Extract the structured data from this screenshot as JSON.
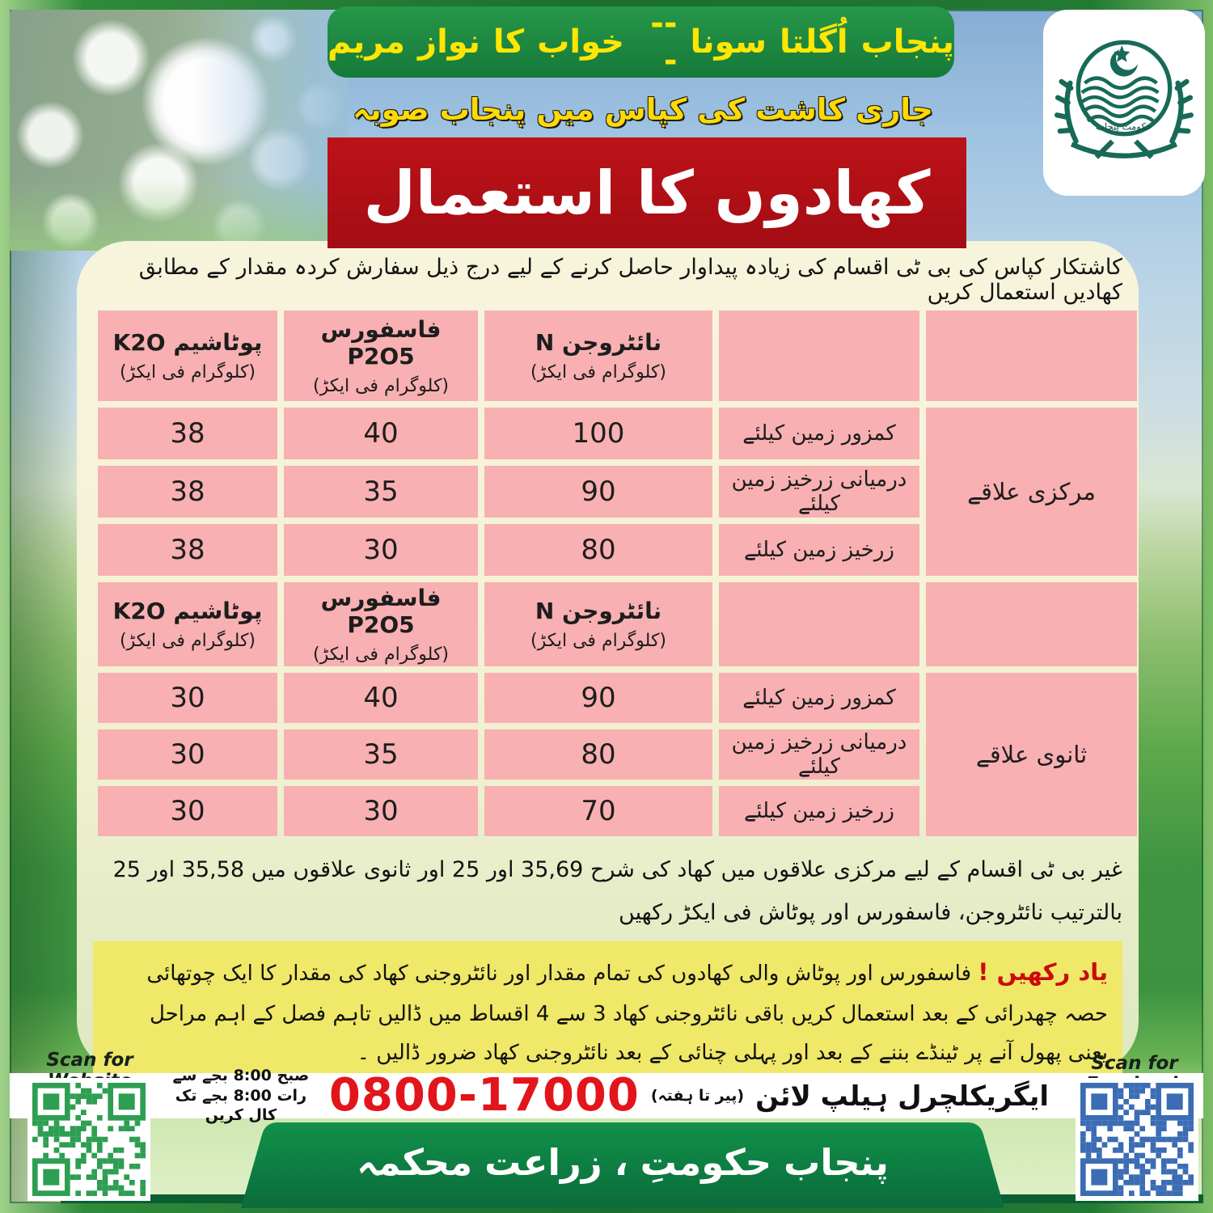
{
  "banner": {
    "headline": "مریم نواز کا خواب --- سونا اُگلتا پنجاب"
  },
  "subtitle": "صوبہ پنجاب میں کپاس کی کاشت جاری",
  "title_box": "کھادوں کا استعمال",
  "intro": "کاشتکار کپاس کی بی ٹی اقسام کی زیادہ پیداوار حاصل کرنے کے لیے درج ذیل سفارش کردہ مقدار کے مطابق کھادیں استعمال کریں",
  "logo": {
    "name": "government-of-punjab-emblem",
    "text": "حکومت پنجاب"
  },
  "table": {
    "headers": {
      "k2o": "پوٹاشیم K2O",
      "p2o5": "فاسفورس P2O5",
      "n": "نائٹروجن N",
      "unit": "(کلوگرام فی ایکڑ)"
    },
    "sections": [
      {
        "region": "مرکزی علاقے",
        "rows": [
          {
            "k2o": "38",
            "p2o5": "40",
            "n": "100",
            "soil": "کمزور زمین کیلئے"
          },
          {
            "k2o": "38",
            "p2o5": "35",
            "n": "90",
            "soil": "درمیانی زرخیز زمین کیلئے"
          },
          {
            "k2o": "38",
            "p2o5": "30",
            "n": "80",
            "soil": "زرخیز زمین کیلئے"
          }
        ]
      },
      {
        "region": "ثانوی علاقے",
        "rows": [
          {
            "k2o": "30",
            "p2o5": "40",
            "n": "90",
            "soil": "کمزور زمین کیلئے"
          },
          {
            "k2o": "30",
            "p2o5": "35",
            "n": "80",
            "soil": "درمیانی زرخیز زمین کیلئے"
          },
          {
            "k2o": "30",
            "p2o5": "30",
            "n": "70",
            "soil": "زرخیز زمین کیلئے"
          }
        ]
      }
    ]
  },
  "note": "غیر بی ٹی اقسام کے لیے مرکزی علاقوں میں کھاد کی شرح 35,69 اور 25 اور ثانوی علاقوں میں 35,58 اور 25 بالترتیب نائٹروجن، فاسفورس اور پوٹاش فی ایکڑ رکھیں",
  "warning": {
    "label": "یاد رکھیں !",
    "text": "فاسفورس اور پوٹاش والی کھادوں کی تمام مقدار اور نائٹروجنی کھاد کی مقدار کا ایک چوتھائی حصہ چھدرائی کے بعد استعمال کریں باقی نائٹروجنی کھاد 3 سے 4 اقساط میں ڈالیں تاہم فصل کے اہم مراحل یعنی پھول آنے پر ٹینڈے بننے کے بعد اور پہلی چنائی کے بعد نائٹروجنی کھاد ضرور ڈالیں ۔"
  },
  "helpline": {
    "label": "ایگریکلچرل ہیلپ لائن",
    "days": "(پیر تا ہفتہ)",
    "phone": "0800-17000",
    "hours": "صبح 8:00 بجے سے رات 8:00 بجے تک کال کریں"
  },
  "qr": {
    "website_label": "Scan for Website",
    "facebook_label": "Scan for Facebook"
  },
  "footer": "محکمہ زراعت ، حکومتِ پنجاب",
  "colors": {
    "banner_green": "#1f8a41",
    "title_red": "#b01016",
    "cell_pink": "#f8b0b2",
    "panel_cream": "#f5f2d8",
    "warning_yellow": "#efe868",
    "phone_red": "#e1151b",
    "footer_green": "#0f8148",
    "qr_green": "#2d9e52",
    "qr_blue": "#3b6cb4",
    "emblem_teal": "#176a58"
  }
}
